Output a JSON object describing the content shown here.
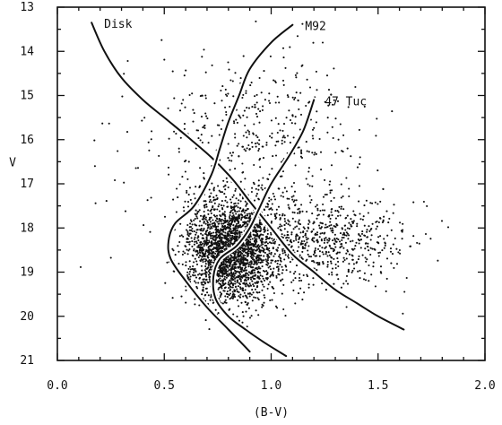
{
  "chart_data": {
    "type": "scatter",
    "xlabel": "(B-V)",
    "ylabel": "V",
    "xlim": [
      0.0,
      2.0
    ],
    "ylim": [
      21,
      13
    ],
    "y_axis_inverted": true,
    "grid": false,
    "legend": "none",
    "x_ticks": [
      "0.0",
      "0.5",
      "1.0",
      "1.5",
      "2.0"
    ],
    "y_ticks": [
      "13",
      "14",
      "15",
      "16",
      "17",
      "18",
      "19",
      "20",
      "21"
    ],
    "point_color": "#111111",
    "cloud_summary": {
      "approx_point_count": 3500,
      "densest_region": {
        "x": [
          0.6,
          1.0
        ],
        "y": [
          17.5,
          19.8
        ]
      },
      "spread": {
        "x": [
          0.1,
          1.9
        ],
        "y": [
          13.3,
          20.3
        ]
      }
    },
    "series": [
      {
        "name": "Disk",
        "type": "line",
        "x": [
          0.16,
          0.22,
          0.3,
          0.4,
          0.5,
          0.6,
          0.72,
          0.82,
          0.9,
          1.0,
          1.1,
          1.2,
          1.3,
          1.4,
          1.5,
          1.62
        ],
        "y": [
          13.35,
          14.0,
          14.6,
          15.1,
          15.5,
          15.9,
          16.4,
          16.9,
          17.4,
          18.0,
          18.6,
          19.0,
          19.4,
          19.7,
          20.0,
          20.3
        ]
      },
      {
        "name": "M92",
        "type": "line",
        "x": [
          1.1,
          1.0,
          0.9,
          0.85,
          0.8,
          0.76,
          0.72,
          0.64,
          0.55,
          0.52,
          0.53,
          0.6,
          0.7,
          0.8,
          0.9
        ],
        "y": [
          13.4,
          13.8,
          14.4,
          15.0,
          15.6,
          16.2,
          16.8,
          17.5,
          17.9,
          18.3,
          18.7,
          19.2,
          19.8,
          20.3,
          20.8
        ]
      },
      {
        "name": "47 Tuc",
        "type": "line",
        "x": [
          1.2,
          1.15,
          1.08,
          1.0,
          0.94,
          0.9,
          0.84,
          0.76,
          0.73,
          0.74,
          0.8,
          0.88,
          0.97,
          1.07
        ],
        "y": [
          15.1,
          15.8,
          16.4,
          17.0,
          17.6,
          18.0,
          18.4,
          18.7,
          19.1,
          19.6,
          20.0,
          20.3,
          20.6,
          20.9
        ]
      }
    ]
  }
}
